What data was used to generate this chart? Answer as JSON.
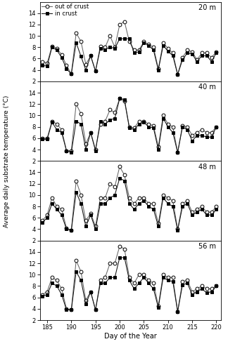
{
  "days": [
    184,
    185,
    186,
    187,
    188,
    189,
    190,
    191,
    192,
    193,
    194,
    195,
    196,
    197,
    198,
    199,
    200,
    201,
    202,
    203,
    204,
    205,
    206,
    207,
    208,
    209,
    210,
    211,
    212,
    213,
    214,
    215,
    216,
    217,
    218,
    219,
    220
  ],
  "site_20m_out": [
    5.5,
    5.2,
    8.2,
    7.8,
    6.7,
    4.8,
    3.3,
    10.5,
    9.0,
    5.0,
    6.5,
    3.8,
    8.2,
    8.0,
    10.0,
    8.0,
    12.0,
    12.5,
    9.0,
    7.5,
    7.5,
    9.0,
    8.5,
    8.0,
    4.2,
    8.8,
    7.8,
    7.0,
    3.2,
    6.2,
    7.5,
    7.2,
    5.8,
    7.0,
    7.0,
    6.2,
    7.2
  ],
  "site_20m_in": [
    4.8,
    4.7,
    8.0,
    7.5,
    6.2,
    4.2,
    3.3,
    8.8,
    6.4,
    4.0,
    6.5,
    3.8,
    7.8,
    7.6,
    8.0,
    7.8,
    9.5,
    9.5,
    9.5,
    7.0,
    7.2,
    8.8,
    8.3,
    7.5,
    4.0,
    8.3,
    7.3,
    6.5,
    3.2,
    5.8,
    7.0,
    6.8,
    5.5,
    6.5,
    6.5,
    5.5,
    7.0
  ],
  "site_40m_out": [
    6.0,
    6.0,
    9.0,
    8.5,
    7.5,
    3.8,
    3.8,
    12.0,
    10.3,
    5.0,
    7.0,
    4.0,
    8.5,
    9.0,
    11.0,
    10.5,
    13.0,
    12.5,
    8.0,
    7.8,
    9.0,
    9.0,
    8.5,
    8.2,
    4.5,
    10.0,
    8.5,
    8.0,
    3.5,
    8.2,
    8.0,
    6.5,
    7.0,
    7.5,
    7.0,
    7.0,
    8.0
  ],
  "site_40m_in": [
    5.8,
    5.8,
    8.8,
    7.5,
    7.0,
    3.8,
    3.5,
    9.0,
    8.5,
    4.0,
    7.0,
    3.8,
    9.0,
    8.5,
    9.2,
    9.5,
    13.0,
    12.8,
    7.8,
    7.5,
    8.5,
    8.8,
    8.0,
    7.8,
    4.0,
    9.5,
    8.0,
    7.0,
    3.5,
    8.0,
    7.5,
    5.5,
    6.5,
    6.5,
    6.2,
    6.2,
    8.0
  ],
  "site_48m_out": [
    5.5,
    6.5,
    9.5,
    8.0,
    7.5,
    4.2,
    3.8,
    12.5,
    10.0,
    5.5,
    6.8,
    4.5,
    9.5,
    9.5,
    12.0,
    11.5,
    15.0,
    13.5,
    9.5,
    8.5,
    9.5,
    9.5,
    8.5,
    8.5,
    5.0,
    10.0,
    9.5,
    9.0,
    4.0,
    8.5,
    9.0,
    7.0,
    7.5,
    8.0,
    7.0,
    7.0,
    8.0
  ],
  "site_48m_in": [
    5.2,
    6.0,
    8.5,
    7.5,
    6.5,
    4.0,
    3.8,
    10.5,
    8.5,
    4.5,
    6.5,
    4.0,
    8.5,
    8.5,
    9.5,
    10.0,
    13.0,
    12.5,
    8.5,
    7.5,
    8.5,
    9.0,
    8.0,
    7.5,
    4.5,
    9.5,
    8.5,
    8.0,
    3.8,
    8.0,
    8.5,
    6.5,
    7.0,
    7.5,
    6.5,
    6.5,
    7.5
  ],
  "site_56m_out": [
    6.5,
    7.0,
    9.5,
    9.0,
    7.5,
    4.0,
    3.8,
    12.5,
    10.5,
    5.5,
    7.0,
    3.8,
    9.0,
    9.5,
    12.0,
    12.0,
    15.0,
    14.5,
    9.5,
    8.5,
    10.0,
    10.0,
    9.0,
    8.5,
    4.5,
    10.0,
    9.5,
    9.5,
    3.5,
    8.8,
    9.0,
    7.0,
    7.5,
    8.0,
    7.5,
    7.5,
    8.0
  ],
  "site_56m_in": [
    6.2,
    6.5,
    8.5,
    8.0,
    6.5,
    3.8,
    3.8,
    10.5,
    9.0,
    4.8,
    7.0,
    3.8,
    8.5,
    8.5,
    9.5,
    9.5,
    13.0,
    13.0,
    9.0,
    7.5,
    8.5,
    9.5,
    8.5,
    7.5,
    4.2,
    9.5,
    9.0,
    8.8,
    3.5,
    8.2,
    8.5,
    6.5,
    7.0,
    7.5,
    6.8,
    7.0,
    8.0
  ],
  "ylim": [
    2,
    16
  ],
  "yticks": [
    2,
    4,
    6,
    8,
    10,
    12,
    14
  ],
  "xlim": [
    183.5,
    221
  ],
  "xticks": [
    185,
    190,
    195,
    200,
    205,
    210,
    215,
    220
  ],
  "xlabel": "Day of the Year",
  "ylabel": "Average daily substrate temperature (°C)",
  "site_labels": [
    "20 m",
    "40 m",
    "48 m",
    "56 m"
  ],
  "legend_out": "out of crust",
  "legend_in": "in crust",
  "line_color_out": "#666666",
  "line_color_in": "#111111",
  "marker_out": "o",
  "marker_in": "s",
  "marker_size_out": 3.5,
  "marker_size_in": 3.5
}
